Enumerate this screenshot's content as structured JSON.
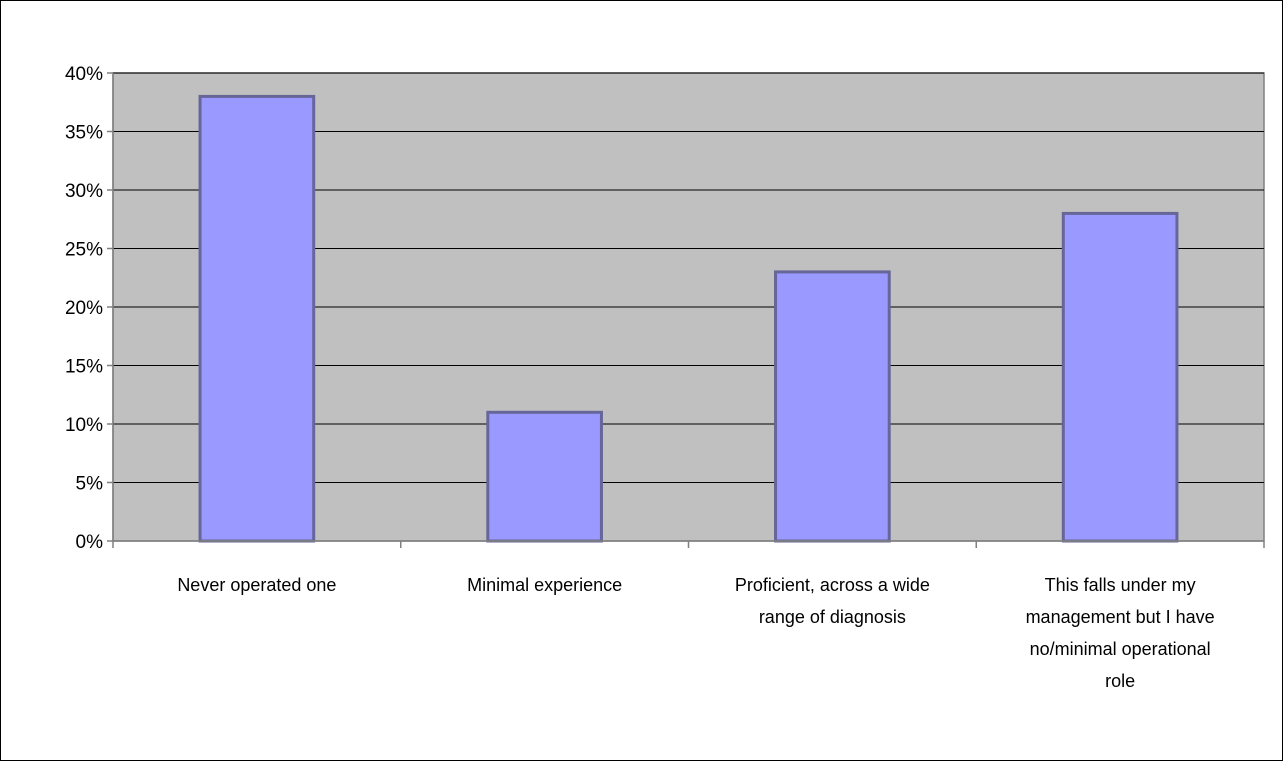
{
  "chart_data": {
    "type": "bar",
    "title": "",
    "xlabel": "",
    "ylabel": "",
    "categories": [
      [
        "Never operated one"
      ],
      [
        "Minimal experience"
      ],
      [
        "Proficient, across a wide",
        "range of diagnosis"
      ],
      [
        "This falls under my",
        "management but I have",
        "no/minimal operational",
        "role"
      ]
    ],
    "values": [
      38,
      11,
      23,
      28
    ],
    "ylim": [
      0,
      40
    ],
    "yticks": [
      0,
      5,
      10,
      15,
      20,
      25,
      30,
      35,
      40
    ],
    "ytick_format": "%",
    "grid": true,
    "legend": "none",
    "colors": {
      "bar_fill": "#9999ff",
      "bar_stroke": "#666699",
      "plot_bg": "#c0c0c0",
      "gridline": "#000000",
      "axis": "#808080"
    }
  }
}
